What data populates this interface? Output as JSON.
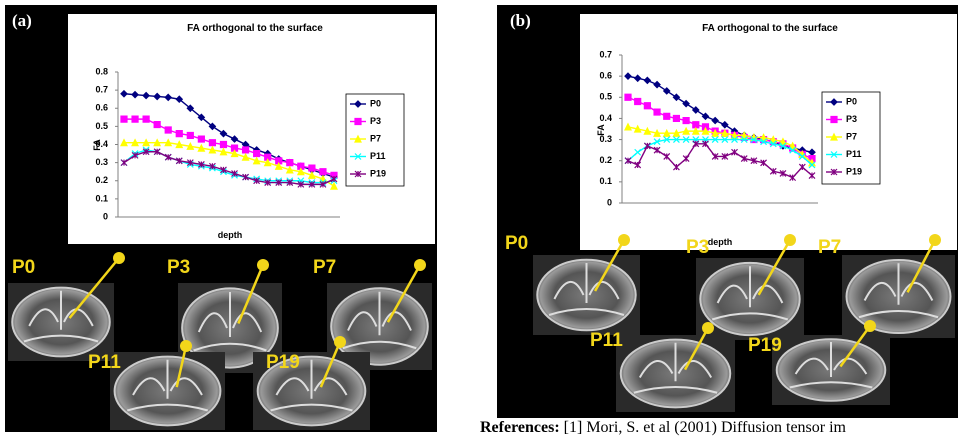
{
  "chart_data": [
    {
      "type": "line",
      "title": "FA orthogonal to the surface",
      "x_label": "depth",
      "y_label": "FA",
      "ylim": [
        0,
        0.8
      ],
      "yticks": [
        0,
        0.1,
        0.2,
        0.3,
        0.4,
        0.5,
        0.6,
        0.7,
        0.8
      ],
      "series": [
        {
          "name": "P0",
          "color": "#000080",
          "values": [
            0.68,
            0.675,
            0.67,
            0.665,
            0.66,
            0.65,
            0.6,
            0.55,
            0.5,
            0.46,
            0.43,
            0.4,
            0.37,
            0.35,
            0.32,
            0.3,
            0.28,
            0.26,
            0.24,
            0.22
          ]
        },
        {
          "name": "P3",
          "color": "#ff00ff",
          "values": [
            0.54,
            0.54,
            0.54,
            0.51,
            0.48,
            0.46,
            0.45,
            0.43,
            0.41,
            0.4,
            0.38,
            0.37,
            0.35,
            0.33,
            0.31,
            0.3,
            0.28,
            0.27,
            0.25,
            0.23
          ]
        },
        {
          "name": "P7",
          "color": "#ffff00",
          "values": [
            0.41,
            0.41,
            0.41,
            0.41,
            0.41,
            0.4,
            0.39,
            0.38,
            0.37,
            0.36,
            0.35,
            0.33,
            0.31,
            0.3,
            0.28,
            0.26,
            0.25,
            0.23,
            0.21,
            0.17
          ]
        },
        {
          "name": "P11",
          "color": "#00ffff",
          "values": [
            0.3,
            0.35,
            0.37,
            0.36,
            0.33,
            0.31,
            0.29,
            0.28,
            0.27,
            0.25,
            0.23,
            0.22,
            0.21,
            0.2,
            0.2,
            0.2,
            0.2,
            0.19,
            0.19,
            0.2
          ]
        },
        {
          "name": "P19",
          "color": "#800080",
          "values": [
            0.3,
            0.34,
            0.36,
            0.36,
            0.33,
            0.31,
            0.3,
            0.29,
            0.28,
            0.26,
            0.24,
            0.22,
            0.2,
            0.19,
            0.19,
            0.19,
            0.18,
            0.18,
            0.18,
            0.21
          ]
        }
      ]
    },
    {
      "type": "line",
      "title": "FA orthogonal to the surface",
      "x_label": "depth",
      "y_label": "FA",
      "ylim": [
        0,
        0.7
      ],
      "yticks": [
        0,
        0.1,
        0.2,
        0.3,
        0.4,
        0.5,
        0.6,
        0.7
      ],
      "series": [
        {
          "name": "P0",
          "color": "#000080",
          "values": [
            0.6,
            0.59,
            0.58,
            0.56,
            0.53,
            0.5,
            0.47,
            0.44,
            0.41,
            0.39,
            0.37,
            0.34,
            0.32,
            0.31,
            0.3,
            0.29,
            0.27,
            0.26,
            0.25,
            0.24
          ]
        },
        {
          "name": "P3",
          "color": "#ff00ff",
          "values": [
            0.5,
            0.48,
            0.46,
            0.43,
            0.41,
            0.4,
            0.39,
            0.37,
            0.36,
            0.34,
            0.33,
            0.32,
            0.31,
            0.3,
            0.3,
            0.29,
            0.28,
            0.26,
            0.23,
            0.21
          ]
        },
        {
          "name": "P7",
          "color": "#ffff00",
          "values": [
            0.36,
            0.35,
            0.34,
            0.33,
            0.33,
            0.33,
            0.34,
            0.34,
            0.34,
            0.33,
            0.33,
            0.32,
            0.32,
            0.31,
            0.31,
            0.3,
            0.29,
            0.27,
            0.23,
            0.19
          ]
        },
        {
          "name": "P11",
          "color": "#00ffff",
          "values": [
            0.2,
            0.24,
            0.27,
            0.29,
            0.3,
            0.3,
            0.3,
            0.3,
            0.3,
            0.3,
            0.3,
            0.3,
            0.3,
            0.3,
            0.29,
            0.28,
            0.27,
            0.25,
            0.22,
            0.18
          ]
        },
        {
          "name": "P19",
          "color": "#800080",
          "values": [
            0.2,
            0.18,
            0.27,
            0.25,
            0.22,
            0.17,
            0.21,
            0.28,
            0.28,
            0.22,
            0.22,
            0.24,
            0.21,
            0.2,
            0.19,
            0.15,
            0.14,
            0.12,
            0.17,
            0.13
          ]
        }
      ]
    }
  ],
  "panels": [
    {
      "label": "(a)",
      "images": [
        "P0",
        "P3",
        "P7",
        "P11",
        "P19"
      ]
    },
    {
      "label": "(b)",
      "images": [
        "P0",
        "P3",
        "P7",
        "P11",
        "P19"
      ]
    }
  ],
  "reference": {
    "label": "References:",
    "text": "[1] Mori, S. et al (2001) Diffusion tensor im"
  }
}
